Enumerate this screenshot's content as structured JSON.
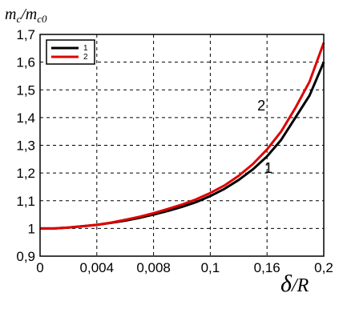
{
  "chart_data": {
    "type": "line",
    "ylabel": {
      "base": "m",
      "sub": "c",
      "base2": "m",
      "sub2": "c0"
    },
    "xlabel": {
      "base": "δ",
      "rest": "/R"
    },
    "yticks": [
      "0,9",
      "1",
      "1,1",
      "1,2",
      "1,3",
      "1,4",
      "1,5",
      "1,6",
      "1,7"
    ],
    "ytick_values": [
      0.9,
      1.0,
      1.1,
      1.2,
      1.3,
      1.4,
      1.5,
      1.6,
      1.7
    ],
    "xticks": [
      "0",
      "0,004",
      "0,008",
      "0,1",
      "0,16",
      "0,2"
    ],
    "ylim": [
      0.9,
      1.7
    ],
    "grid": true,
    "legend_position": "top-left",
    "legend": [
      "1",
      "2"
    ],
    "x_positions": [
      0,
      0.05,
      0.1,
      0.15,
      0.2,
      0.25,
      0.3,
      0.35,
      0.4,
      0.45,
      0.5,
      0.55,
      0.6,
      0.65,
      0.7,
      0.75,
      0.8,
      0.85,
      0.9,
      0.95,
      1.0
    ],
    "series": [
      {
        "name": "1",
        "color": "#000000",
        "values": [
          1.0,
          1.0,
          1.003,
          1.008,
          1.013,
          1.02,
          1.028,
          1.038,
          1.05,
          1.063,
          1.078,
          1.095,
          1.117,
          1.143,
          1.175,
          1.213,
          1.26,
          1.32,
          1.4,
          1.48,
          1.6
        ]
      },
      {
        "name": "2",
        "color": "#e00000",
        "values": [
          1.0,
          1.0,
          1.003,
          1.008,
          1.013,
          1.021,
          1.031,
          1.042,
          1.055,
          1.07,
          1.086,
          1.105,
          1.128,
          1.155,
          1.19,
          1.232,
          1.285,
          1.35,
          1.435,
          1.53,
          1.67
        ]
      }
    ],
    "curve_labels": [
      {
        "text": "1",
        "x": 0.805,
        "y": 1.2
      },
      {
        "text": "2",
        "x": 0.78,
        "y": 1.425
      }
    ]
  }
}
